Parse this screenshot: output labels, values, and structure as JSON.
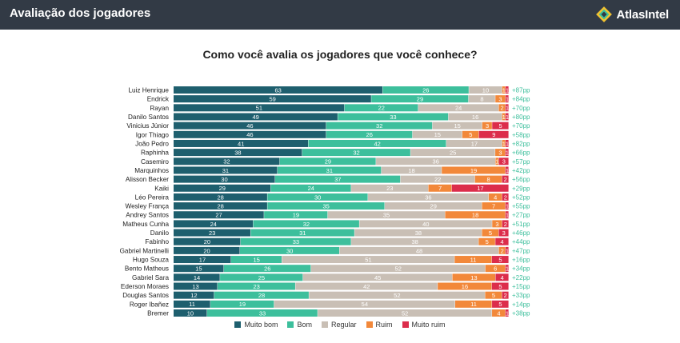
{
  "header": {
    "title": "Avaliação dos jogadores",
    "brand": "AtlasIntel"
  },
  "chart_data": {
    "type": "bar",
    "orientation": "horizontal",
    "stacked": "percent",
    "title": "Como você avalia os jogadores que você conhece?",
    "xlabel": "",
    "ylabel": "",
    "grid": false,
    "legend_placement": "bottom",
    "categories": [
      "Luiz Henrique",
      "Endrick",
      "Rayan",
      "Danilo Santos",
      "Vinicius Júnior",
      "Igor Thiago",
      "João Pedro",
      "Raphinha",
      "Casemiro",
      "Marquinhos",
      "Alisson Becker",
      "Kaiki",
      "Léo Pereira",
      "Wesley França",
      "Andrey Santos",
      "Matheus Cunha",
      "Danilo",
      "Fabinho",
      "Gabriel Martinelli",
      "Hugo Souza",
      "Bento Matheus",
      "Gabriel Sara",
      "Ederson Moraes",
      "Douglas Santos",
      "Roger Ibañez",
      "Bremer"
    ],
    "series": [
      {
        "name": "Muito bom",
        "color": "#1e5f6e",
        "values": [
          63,
          59,
          51,
          49,
          46,
          46,
          41,
          38,
          32,
          31,
          30,
          29,
          28,
          28,
          27,
          24,
          23,
          20,
          20,
          17,
          15,
          14,
          13,
          12,
          11,
          10
        ]
      },
      {
        "name": "Bom",
        "color": "#3dbf9c",
        "values": [
          26,
          29,
          22,
          33,
          32,
          26,
          42,
          32,
          29,
          31,
          37,
          24,
          30,
          35,
          19,
          32,
          31,
          33,
          30,
          15,
          26,
          25,
          23,
          28,
          19,
          33
        ]
      },
      {
        "name": "Regular",
        "color": "#c9bfb5",
        "values": [
          10,
          8,
          24,
          16,
          15,
          15,
          17,
          25,
          36,
          18,
          22,
          23,
          36,
          29,
          35,
          40,
          38,
          38,
          48,
          51,
          52,
          45,
          42,
          52,
          54,
          52
        ]
      },
      {
        "name": "Ruim",
        "color": "#f2883a",
        "values": [
          1,
          3,
          2,
          1,
          3,
          5,
          1,
          3,
          1,
          19,
          8,
          7,
          4,
          7,
          18,
          3,
          5,
          5,
          2,
          11,
          6,
          13,
          16,
          5,
          11,
          4
        ]
      },
      {
        "name": "Muito ruim",
        "color": "#dc2d4b",
        "values": [
          1,
          1,
          1,
          1,
          5,
          9,
          1,
          1,
          3,
          1,
          2,
          17,
          2,
          1,
          1,
          2,
          3,
          4,
          1,
          5,
          1,
          4,
          5,
          2,
          5,
          1
        ]
      }
    ],
    "net": [
      "+87pp",
      "+84pp",
      "+70pp",
      "+80pp",
      "+70pp",
      "+58pp",
      "+82pp",
      "+66pp",
      "+57pp",
      "+42pp",
      "+56pp",
      "+29pp",
      "+52pp",
      "+55pp",
      "+27pp",
      "+51pp",
      "+46pp",
      "+44pp",
      "+47pp",
      "+16pp",
      "+34pp",
      "+22pp",
      "+15pp",
      "+33pp",
      "+14pp",
      "+38pp"
    ],
    "net_color": "#3dbf9c"
  }
}
